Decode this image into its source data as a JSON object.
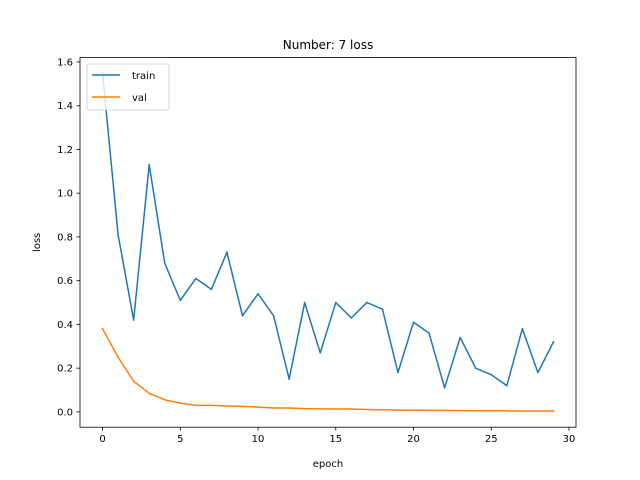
{
  "chart_data": {
    "type": "line",
    "title": "Number: 7 loss",
    "xlabel": "epoch",
    "ylabel": "loss",
    "xlim": [
      -1.45,
      30.45
    ],
    "ylim": [
      -0.07,
      1.62
    ],
    "xticks": [
      0,
      5,
      10,
      15,
      20,
      25,
      30
    ],
    "yticks": [
      0.0,
      0.2,
      0.4,
      0.6,
      0.8,
      1.0,
      1.2,
      1.4,
      1.6
    ],
    "legend_position": "top-left",
    "grid": false,
    "x": [
      0,
      1,
      2,
      3,
      4,
      5,
      6,
      7,
      8,
      9,
      10,
      11,
      12,
      13,
      14,
      15,
      16,
      17,
      18,
      19,
      20,
      21,
      22,
      23,
      24,
      25,
      26,
      27,
      28,
      29
    ],
    "series": [
      {
        "name": "train",
        "color": "#1f77b4",
        "values": [
          1.55,
          0.81,
          0.42,
          1.13,
          0.68,
          0.51,
          0.61,
          0.56,
          0.73,
          0.44,
          0.54,
          0.44,
          0.15,
          0.5,
          0.27,
          0.5,
          0.43,
          0.5,
          0.47,
          0.18,
          0.41,
          0.36,
          0.11,
          0.34,
          0.2,
          0.17,
          0.12,
          0.38,
          0.18,
          0.32
        ]
      },
      {
        "name": "val",
        "color": "#ff7f0e",
        "values": [
          0.38,
          0.25,
          0.14,
          0.085,
          0.055,
          0.04,
          0.03,
          0.03,
          0.027,
          0.025,
          0.022,
          0.018,
          0.018,
          0.015,
          0.014,
          0.013,
          0.013,
          0.011,
          0.01,
          0.008,
          0.008,
          0.007,
          0.007,
          0.006,
          0.005,
          0.005,
          0.005,
          0.004,
          0.004,
          0.004
        ]
      }
    ]
  }
}
